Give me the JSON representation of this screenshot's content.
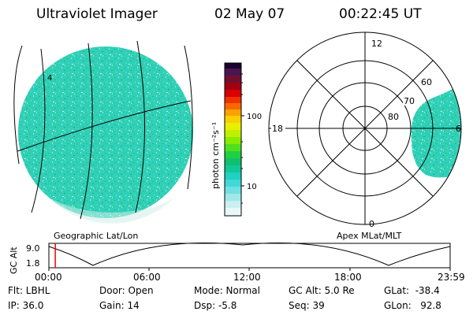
{
  "header": {
    "instrument": "Ultraviolet Imager",
    "date": "02 May 07",
    "time": "00:22:45 UT"
  },
  "geo_panel": {
    "caption": "Geographic Lat/Lon",
    "marker": "4"
  },
  "colorbar": {
    "unit_label": "photon cm⁻²s⁻¹",
    "ticks": [
      "100",
      "10"
    ],
    "scale": "log"
  },
  "polar_panel": {
    "caption": "Apex MLat/MLT",
    "mlt_labels": {
      "top": "12",
      "left": "18",
      "right": "6",
      "bottom": "0"
    },
    "lat_labels": [
      "60",
      "70",
      "80"
    ]
  },
  "timeline": {
    "axis_label": "GC Alt",
    "y_ticks": [
      "9.0",
      "1.8"
    ],
    "x_ticks": [
      "00:00",
      "06:00",
      "12:00",
      "18:00",
      "23:59"
    ],
    "current_time_fraction": 0.016,
    "marker_color": "#ff0000"
  },
  "info": {
    "flt": "Flt: LBHL",
    "ip": "IP: 36.0",
    "door": "Door: Open",
    "gain": "Gain: 14",
    "mode": "Mode: Normal",
    "dsp": "Dsp:    -5.8",
    "gc_alt": "GC Alt: 5.0 Re",
    "seq": "Seq: 39",
    "glat": "GLat:  -38.4",
    "glon": "GLon:   92.8"
  },
  "colors": {
    "noise_base": "#30d0b8",
    "noise_light": "#cfeee8"
  }
}
